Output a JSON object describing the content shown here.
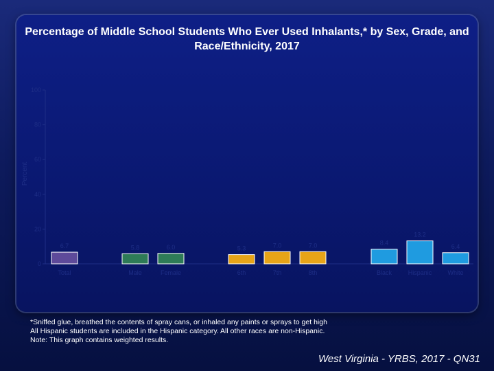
{
  "chart_data": {
    "type": "bar",
    "title": "Percentage of Middle School Students Who Ever Used Inhalants,* by Sex, Grade, and Race/Ethnicity, 2017",
    "ylabel": "Percent",
    "ylim": [
      0,
      100
    ],
    "yticks": [
      "0",
      "20",
      "40",
      "60",
      "80",
      "100"
    ],
    "grid": false,
    "legend": "none",
    "categories": [
      "Total",
      "Male",
      "Female",
      "6th",
      "7th",
      "8th",
      "Black",
      "Hispanic",
      "White"
    ],
    "values": [
      6.7,
      5.8,
      6.0,
      5.3,
      7.0,
      7.0,
      8.4,
      13.2,
      6.4
    ],
    "value_labels": [
      "6.7",
      "5.8",
      "6.0",
      "5.3",
      "7.0",
      "7.0",
      "8.4",
      "13.2",
      "6.4"
    ],
    "colors": [
      "#5e4a9a",
      "#2e7b57",
      "#2e7b57",
      "#e7a418",
      "#e7a418",
      "#e7a418",
      "#1f9be0",
      "#1f9be0",
      "#1f9be0"
    ]
  },
  "notes": [
    "*Sniffed glue, breathed the contents of spray cans, or inhaled any paints or sprays to get high",
    "All Hispanic students are included in the Hispanic category.  All other races are non-Hispanic.",
    "Note: This graph contains weighted results."
  ],
  "footer": "West Virginia - YRBS, 2017 - QN31"
}
